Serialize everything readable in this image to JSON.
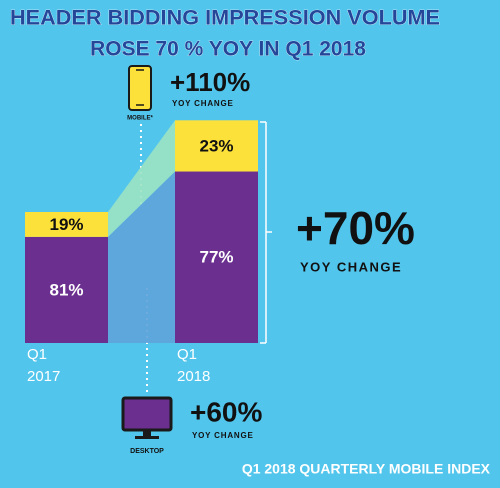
{
  "chart_data": {
    "type": "stacked-bar",
    "title_lines": [
      "HEADER BIDDING IMPRESSION VOLUME",
      "ROSE 70 % YOY IN Q1 2018"
    ],
    "categories": [
      [
        "Q1",
        "2017"
      ],
      [
        "Q1",
        "2018"
      ]
    ],
    "series": [
      {
        "name": "DESKTOP",
        "color": "#6b2f8f",
        "label_color": "#ffffff",
        "values": [
          81,
          77
        ],
        "value_labels": [
          "81%",
          "77%"
        ],
        "change": {
          "value": 60,
          "label": "+60%"
        },
        "change_caption": "YOY CHANGE"
      },
      {
        "name": "MOBILE*",
        "color": "#fde13b",
        "label_color": "#111111",
        "values": [
          19,
          23
        ],
        "value_labels": [
          "19%",
          "23%"
        ],
        "change": {
          "value": 110,
          "label": "+110%"
        },
        "change_caption": "YOY CHANGE"
      }
    ],
    "total_change": {
      "value": 70,
      "label": "+70%"
    },
    "total_change_caption": "YOY CHANGE",
    "footer": "Q1 2018 QUARTERLY MOBILE INDEX"
  }
}
